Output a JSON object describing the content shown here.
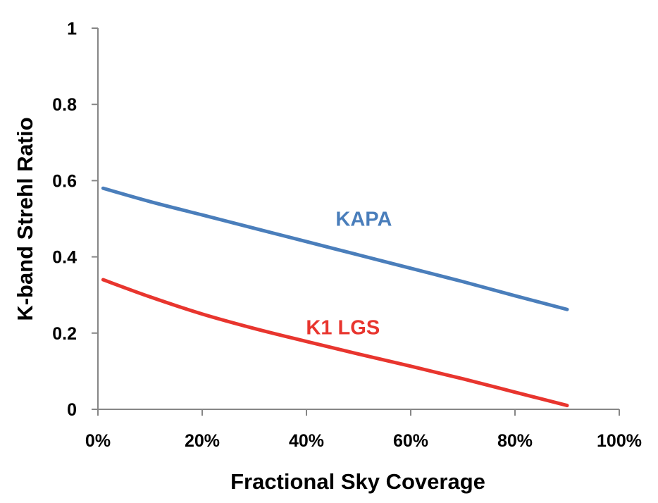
{
  "chart_data": {
    "type": "line",
    "xlabel": "Fractional Sky Coverage",
    "ylabel": "K-band Strehl Ratio",
    "xlim": [
      0,
      100
    ],
    "ylim": [
      0,
      1
    ],
    "x_ticks": [
      0,
      20,
      40,
      60,
      80,
      100
    ],
    "x_tick_labels": [
      "0%",
      "20%",
      "40%",
      "60%",
      "80%",
      "100%"
    ],
    "y_ticks": [
      0,
      0.2,
      0.4,
      0.6,
      0.8,
      1
    ],
    "y_tick_labels": [
      "0",
      "0.2",
      "0.4",
      "0.6",
      "0.8",
      "1"
    ],
    "grid": false,
    "legend": "inline labels",
    "series": [
      {
        "name": "KAPA",
        "color": "#4a7ebb",
        "x": [
          1,
          10,
          20,
          30,
          40,
          50,
          60,
          70,
          80,
          90
        ],
        "y": [
          0.58,
          0.545,
          0.51,
          0.475,
          0.44,
          0.405,
          0.37,
          0.335,
          0.298,
          0.262
        ]
      },
      {
        "name": "K1 LGS",
        "color": "#e8352e",
        "x": [
          1,
          10,
          20,
          30,
          40,
          50,
          60,
          70,
          80,
          90
        ],
        "y": [
          0.34,
          0.295,
          0.25,
          0.212,
          0.178,
          0.145,
          0.113,
          0.08,
          0.045,
          0.01
        ]
      }
    ]
  }
}
